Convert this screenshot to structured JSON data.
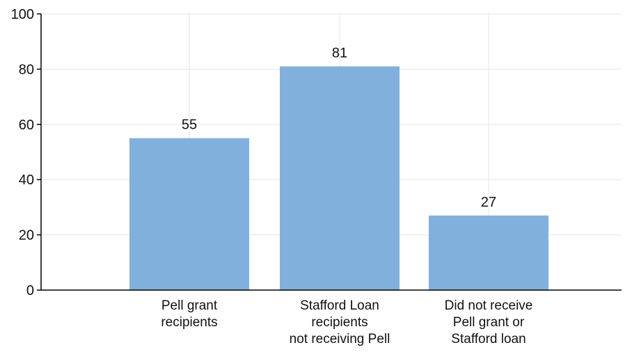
{
  "chart_data": {
    "type": "bar",
    "categories": [
      [
        "Pell grant",
        "recipients"
      ],
      [
        "Stafford Loan",
        "recipients",
        "not receiving Pell"
      ],
      [
        "Did not receive",
        "Pell grant or",
        "Stafford loan"
      ]
    ],
    "values": [
      55,
      81,
      27
    ],
    "data_labels": [
      "55",
      "81",
      "27"
    ],
    "ylim": [
      0,
      100
    ],
    "yticks": [
      0,
      20,
      40,
      60,
      80,
      100
    ],
    "title": "",
    "xlabel": "",
    "ylabel": "",
    "grid": true,
    "legend": "none",
    "bar_color": "#82b0dc",
    "grid_color": "#e6e6e6",
    "axis_color": "#000000"
  }
}
